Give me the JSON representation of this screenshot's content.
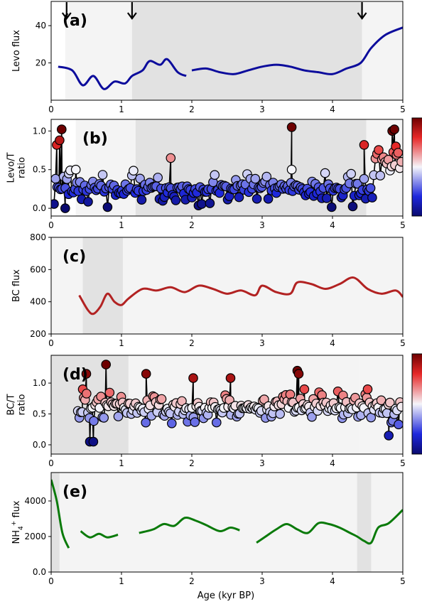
{
  "figure": {
    "xlabel": "Age (kyr BP)",
    "xticks": [
      "0",
      "1",
      "2",
      "3",
      "4",
      "5"
    ]
  },
  "chart_data": [
    {
      "id": "a",
      "type": "line",
      "panel_label": "(a)",
      "ylabel": [
        "Levo flux"
      ],
      "xlim": [
        0,
        5
      ],
      "ylim": [
        0,
        53
      ],
      "yticks": [
        20,
        40
      ],
      "bands": [
        [
          0.2,
          1.15,
          "light"
        ],
        [
          1.15,
          4.42,
          "dark"
        ],
        [
          4.42,
          5,
          "light"
        ]
      ],
      "arrows_at_age": [
        0.22,
        1.15,
        4.42
      ],
      "raw_color": "#8fb6ea",
      "smooth_color": "#0c0c9c",
      "raw_series": {
        "x_range": [
          0.1,
          4.98
        ],
        "n": 240,
        "seed": 11,
        "noise": 10
      },
      "smooth_segments": [
        [
          [
            0.1,
            18
          ],
          [
            0.3,
            16
          ],
          [
            0.45,
            8
          ],
          [
            0.6,
            13
          ],
          [
            0.75,
            6
          ],
          [
            0.9,
            10
          ],
          [
            1.05,
            9
          ],
          [
            1.15,
            13
          ],
          [
            1.3,
            16
          ],
          [
            1.4,
            21
          ],
          [
            1.55,
            19
          ],
          [
            1.65,
            22
          ],
          [
            1.8,
            15
          ],
          [
            1.92,
            13
          ]
        ],
        [
          [
            2.0,
            16
          ],
          [
            2.2,
            17
          ],
          [
            2.4,
            15
          ],
          [
            2.6,
            14
          ],
          [
            2.8,
            16
          ],
          [
            3.0,
            18
          ],
          [
            3.2,
            19
          ],
          [
            3.4,
            18
          ],
          [
            3.6,
            16
          ],
          [
            3.8,
            15
          ],
          [
            4.0,
            14
          ],
          [
            4.2,
            17
          ],
          [
            4.4,
            20
          ],
          [
            4.55,
            28
          ],
          [
            4.75,
            35
          ],
          [
            5.0,
            39
          ]
        ]
      ]
    },
    {
      "id": "b",
      "type": "scatter",
      "panel_label": "(b)",
      "ylabel": [
        "Levo/T",
        "ratio"
      ],
      "xlim": [
        0,
        5
      ],
      "ylim": [
        -0.1,
        1.15
      ],
      "yticks": [
        0.0,
        0.5,
        1.0
      ],
      "bands": [
        [
          0.35,
          1.2,
          "light"
        ],
        [
          1.2,
          4.48,
          "dark"
        ],
        [
          4.48,
          5,
          "light"
        ]
      ],
      "colorbar": true,
      "cmap_range": [
        0.0,
        1.0
      ],
      "points_series": {
        "x_range": [
          0.04,
          4.98
        ],
        "n": 215,
        "seed": 23,
        "base": 0.25,
        "noise": 0.28
      },
      "highlights": [
        [
          0.08,
          0.82
        ],
        [
          0.12,
          0.88
        ],
        [
          0.15,
          1.02
        ],
        [
          0.2,
          0.0
        ],
        [
          0.25,
          0.45
        ],
        [
          0.35,
          0.5
        ],
        [
          1.7,
          0.65
        ],
        [
          3.42,
          1.05
        ],
        [
          3.42,
          0.5
        ],
        [
          4.45,
          0.82
        ],
        [
          4.85,
          1.0
        ],
        [
          4.88,
          1.02
        ],
        [
          4.9,
          0.8
        ]
      ]
    },
    {
      "id": "c",
      "type": "line",
      "panel_label": "(c)",
      "ylabel": [
        "BC flux"
      ],
      "xlim": [
        0,
        5
      ],
      "ylim": [
        200,
        800
      ],
      "yticks": [
        200,
        400,
        600,
        800
      ],
      "bands": [
        [
          0.0,
          0.45,
          "light"
        ],
        [
          0.45,
          1.02,
          "dark"
        ],
        [
          1.02,
          5,
          "light"
        ]
      ],
      "raw_color": "#f2a3a3",
      "smooth_color": "#b22222",
      "raw_series": {
        "x_range": [
          0.4,
          5.0
        ],
        "n": 360,
        "seed": 37,
        "noise": 120
      },
      "smooth_segments": [
        [
          [
            0.4,
            440
          ],
          [
            0.52,
            350
          ],
          [
            0.6,
            325
          ],
          [
            0.7,
            370
          ],
          [
            0.8,
            450
          ],
          [
            0.9,
            400
          ],
          [
            1.0,
            380
          ],
          [
            1.1,
            420
          ],
          [
            1.3,
            480
          ],
          [
            1.5,
            470
          ],
          [
            1.7,
            490
          ],
          [
            1.9,
            460
          ],
          [
            2.1,
            500
          ],
          [
            2.3,
            480
          ],
          [
            2.5,
            450
          ],
          [
            2.7,
            470
          ],
          [
            2.9,
            440
          ],
          [
            3.0,
            500
          ],
          [
            3.2,
            460
          ],
          [
            3.4,
            450
          ],
          [
            3.5,
            520
          ],
          [
            3.7,
            510
          ],
          [
            3.9,
            480
          ],
          [
            4.1,
            510
          ],
          [
            4.3,
            550
          ],
          [
            4.5,
            480
          ],
          [
            4.7,
            450
          ],
          [
            4.9,
            470
          ],
          [
            5.0,
            430
          ]
        ]
      ]
    },
    {
      "id": "d",
      "type": "scatter",
      "panel_label": "(d)",
      "ylabel": [
        "BC/T",
        "ratio"
      ],
      "xlim": [
        0,
        5
      ],
      "ylim": [
        -0.15,
        1.45
      ],
      "yticks": [
        0.0,
        0.5,
        1.0
      ],
      "bands": [
        [
          0.0,
          1.1,
          "dark"
        ],
        [
          1.1,
          4.38,
          "light"
        ],
        [
          4.38,
          5,
          "light"
        ]
      ],
      "colorbar": true,
      "cmap_range": [
        0.0,
        1.2
      ],
      "points_series": {
        "x_range": [
          0.38,
          4.98
        ],
        "n": 225,
        "seed": 51,
        "base": 0.6,
        "noise": 0.3
      },
      "highlights": [
        [
          0.45,
          0.9
        ],
        [
          0.5,
          1.15
        ],
        [
          0.55,
          0.05
        ],
        [
          0.6,
          0.05
        ],
        [
          0.78,
          1.3
        ],
        [
          1.35,
          1.15
        ],
        [
          2.02,
          1.08
        ],
        [
          2.55,
          1.08
        ],
        [
          3.5,
          1.2
        ],
        [
          3.52,
          1.15
        ],
        [
          3.6,
          0.9
        ],
        [
          4.15,
          0.8
        ],
        [
          4.5,
          0.9
        ],
        [
          4.8,
          0.15
        ]
      ]
    },
    {
      "id": "e",
      "type": "line",
      "panel_label": "(e)",
      "ylabel": [
        "NH4+ flux"
      ],
      "ylabel_main": "NH",
      "ylabel_sub": "4",
      "ylabel_sup": "+",
      "ylabel_tail": " flux",
      "xlim": [
        0,
        5
      ],
      "ylim": [
        0,
        5600
      ],
      "yticks": [
        0,
        2000,
        4000
      ],
      "bands": [
        [
          0.0,
          0.12,
          "dark"
        ],
        [
          0.12,
          4.35,
          "light"
        ],
        [
          4.35,
          4.55,
          "dark"
        ],
        [
          4.55,
          5,
          "light"
        ]
      ],
      "raw_color": "#9ee79e",
      "smooth_color": "#0a7a0a",
      "raw_series": {
        "x_range": [
          0.0,
          5.0
        ],
        "n": 330,
        "seed": 73,
        "noise": 1100
      },
      "smooth_segments": [
        [
          [
            0.0,
            5200
          ],
          [
            0.08,
            4000
          ],
          [
            0.16,
            2200
          ],
          [
            0.25,
            1350
          ]
        ],
        [
          [
            0.42,
            2300
          ],
          [
            0.55,
            1950
          ],
          [
            0.68,
            2150
          ],
          [
            0.8,
            1950
          ],
          [
            0.95,
            2100
          ]
        ],
        [
          [
            1.25,
            2200
          ],
          [
            1.45,
            2400
          ],
          [
            1.6,
            2700
          ],
          [
            1.75,
            2600
          ],
          [
            1.9,
            3050
          ],
          [
            2.05,
            2900
          ],
          [
            2.2,
            2650
          ],
          [
            2.4,
            2300
          ],
          [
            2.55,
            2500
          ],
          [
            2.68,
            2350
          ]
        ],
        [
          [
            2.92,
            1650
          ],
          [
            3.05,
            2000
          ],
          [
            3.2,
            2400
          ],
          [
            3.35,
            2700
          ],
          [
            3.5,
            2400
          ],
          [
            3.65,
            2200
          ],
          [
            3.8,
            2750
          ],
          [
            3.95,
            2700
          ],
          [
            4.1,
            2500
          ],
          [
            4.25,
            2200
          ],
          [
            4.35,
            2000
          ],
          [
            4.45,
            1750
          ],
          [
            4.55,
            1650
          ],
          [
            4.65,
            2500
          ],
          [
            4.8,
            2750
          ],
          [
            5.0,
            3500
          ]
        ]
      ]
    }
  ],
  "colors": {
    "frame": "#000000",
    "band_light": "#f4f4f4",
    "band_dark": "#e2e2e2",
    "marker_edge": "#000000"
  }
}
